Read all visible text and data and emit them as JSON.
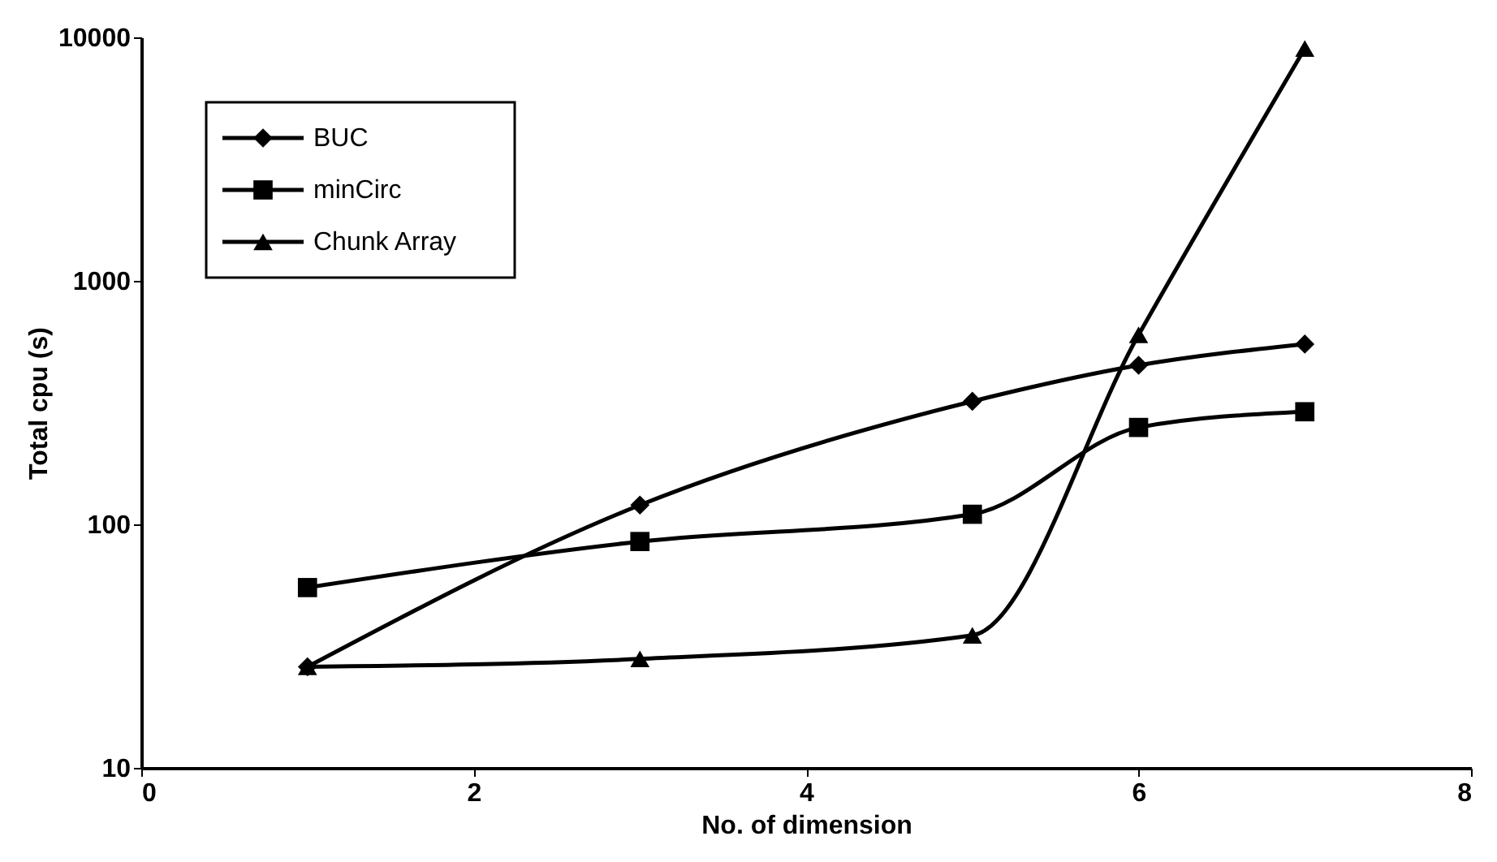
{
  "chart_data": {
    "type": "line",
    "xlabel": "No. of dimension",
    "ylabel": "Total cpu (s)",
    "x": [
      1,
      3,
      5,
      6,
      7
    ],
    "series": [
      {
        "name": "BUC",
        "color": "#000000",
        "marker": "diamond",
        "values": [
          26,
          120,
          320,
          450,
          550
        ]
      },
      {
        "name": "minCirc",
        "color": "#000000",
        "marker": "square",
        "values": [
          55,
          85,
          110,
          250,
          290
        ]
      },
      {
        "name": "Chunk Array",
        "color": "#000000",
        "marker": "triangle",
        "values": [
          26,
          28,
          35,
          600,
          9000
        ]
      }
    ],
    "xlim": [
      0,
      8
    ],
    "xticks": [
      0,
      2,
      4,
      6,
      8
    ],
    "ylim": [
      10,
      10000
    ],
    "yticks": [
      10,
      100,
      1000,
      10000
    ],
    "log": "y",
    "grid": false,
    "legend": "top left"
  }
}
